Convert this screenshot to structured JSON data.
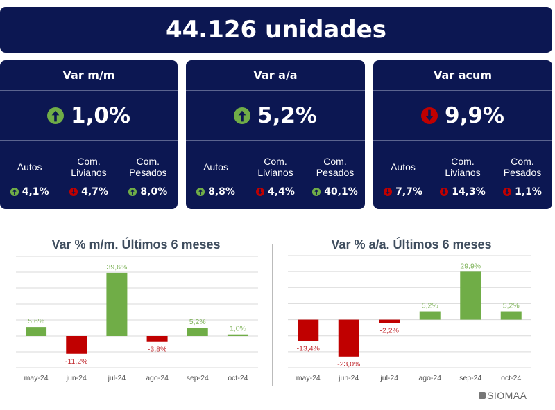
{
  "banner": {
    "title": "44.126 unidades"
  },
  "cards": [
    {
      "title": "Var m/m",
      "value": "1,0%",
      "direction": "up",
      "subs": [
        {
          "label": "Autos",
          "value": "4,1%",
          "direction": "up"
        },
        {
          "label": "Com. Livianos",
          "value": "4,7%",
          "direction": "down"
        },
        {
          "label": "Com. Pesados",
          "value": "8,0%",
          "direction": "up"
        }
      ]
    },
    {
      "title": "Var a/a",
      "value": "5,2%",
      "direction": "up",
      "subs": [
        {
          "label": "Autos",
          "value": "8,8%",
          "direction": "up"
        },
        {
          "label": "Com. Livianos",
          "value": "4,4%",
          "direction": "down"
        },
        {
          "label": "Com. Pesados",
          "value": "40,1%",
          "direction": "up"
        }
      ]
    },
    {
      "title": "Var acum",
      "value": "9,9%",
      "direction": "down",
      "subs": [
        {
          "label": "Autos",
          "value": "7,7%",
          "direction": "down"
        },
        {
          "label": "Com. Livianos",
          "value": "14,3%",
          "direction": "down"
        },
        {
          "label": "Com. Pesados",
          "value": "1,1%",
          "direction": "down"
        }
      ]
    }
  ],
  "colors": {
    "navy": "#0c1752",
    "up": "#70ad47",
    "down": "#c00000",
    "title": "#3f4d5e"
  },
  "icons": {
    "up": "arrow-up-circle-icon",
    "down": "arrow-down-circle-icon"
  },
  "chart_data": [
    {
      "type": "bar",
      "title": "Var % m/m. Últimos 6 meses",
      "categories": [
        "may-24",
        "jun-24",
        "jul-24",
        "ago-24",
        "sep-24",
        "oct-24"
      ],
      "values": [
        5.6,
        -11.2,
        39.6,
        -3.8,
        5.2,
        1.0
      ],
      "labels": [
        "5,6%",
        "-11,2%",
        "39,6%",
        "-3,8%",
        "5,2%",
        "1,0%"
      ],
      "ylim": [
        -20,
        50
      ],
      "grid": true
    },
    {
      "type": "bar",
      "title": "Var % a/a. Últimos 6 meses",
      "categories": [
        "may-24",
        "jun-24",
        "jul-24",
        "ago-24",
        "sep-24",
        "oct-24"
      ],
      "values": [
        -13.4,
        -23.0,
        -2.2,
        5.2,
        29.9,
        5.2
      ],
      "labels": [
        "-13,4%",
        "-23,0%",
        "-2,2%",
        "5,2%",
        "29,9%",
        "5,2%"
      ],
      "ylim": [
        -30,
        40
      ],
      "grid": true
    }
  ],
  "footer": {
    "logo": "SIOMAA"
  }
}
